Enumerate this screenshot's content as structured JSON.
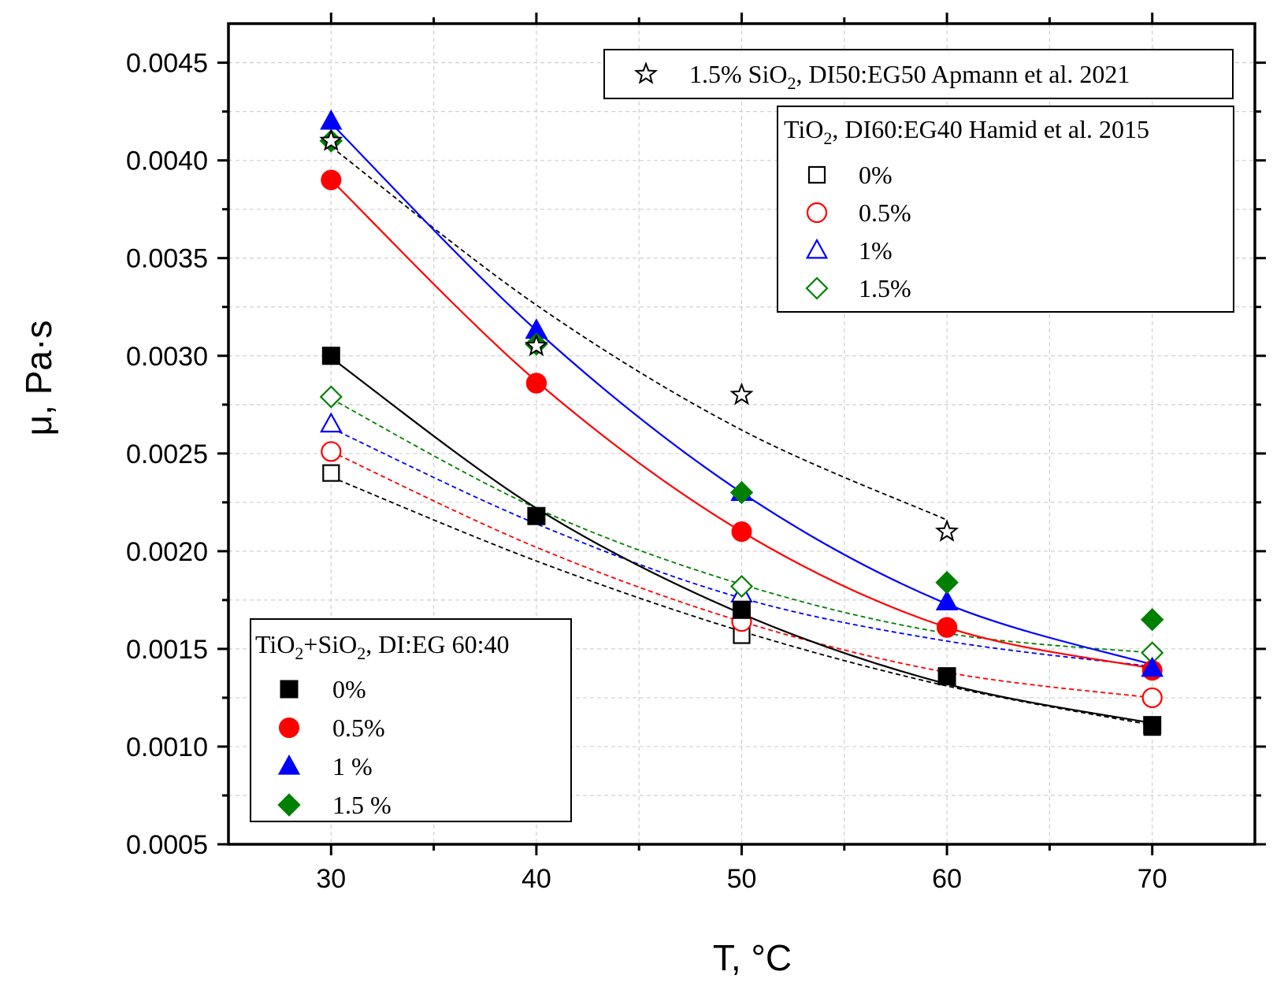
{
  "chart_data": {
    "type": "scatter",
    "xlabel": "T, °C",
    "ylabel": "μ, Pa·s",
    "xlim": [
      25,
      75
    ],
    "ylim": [
      0.0005,
      0.0047
    ],
    "x_ticks": [
      {
        "value": 30,
        "label": "30"
      },
      {
        "value": 40,
        "label": "40"
      },
      {
        "value": 50,
        "label": "50"
      },
      {
        "value": 60,
        "label": "60"
      },
      {
        "value": 70,
        "label": "70"
      }
    ],
    "y_ticks": [
      {
        "value": 0.0005,
        "label": "0.0005"
      },
      {
        "value": 0.001,
        "label": "0.0010"
      },
      {
        "value": 0.0015,
        "label": "0.0015"
      },
      {
        "value": 0.002,
        "label": "0.0020"
      },
      {
        "value": 0.0025,
        "label": "0.0025"
      },
      {
        "value": 0.003,
        "label": "0.0030"
      },
      {
        "value": 0.0035,
        "label": "0.0035"
      },
      {
        "value": 0.004,
        "label": "0.0040"
      },
      {
        "value": 0.0045,
        "label": "0.0045"
      }
    ],
    "grid": true,
    "series": [
      {
        "id": "pres-0",
        "name": "0%",
        "group": "present",
        "marker": "square",
        "filled": true,
        "color": "#000000",
        "fit": "solid",
        "x": [
          30,
          40,
          50,
          60,
          70
        ],
        "y": [
          0.003,
          0.00218,
          0.0017,
          0.00136,
          0.00111
        ],
        "fit_y": [
          0.00299,
          0.00222,
          0.00168,
          0.00132,
          0.00112
        ]
      },
      {
        "id": "pres-05",
        "name": "0.5%",
        "group": "present",
        "marker": "circle",
        "filled": true,
        "color": "#ff0000",
        "fit": "solid",
        "x": [
          30,
          40,
          50,
          60,
          70
        ],
        "y": [
          0.0039,
          0.00286,
          0.0021,
          0.00161,
          0.00139
        ],
        "fit_y": [
          0.0039,
          0.00287,
          0.0021,
          0.00161,
          0.0014
        ]
      },
      {
        "id": "pres-1",
        "name": "1 %",
        "group": "present",
        "marker": "triangle",
        "filled": true,
        "color": "#0000ff",
        "fit": "solid",
        "x": [
          30,
          40,
          50,
          60,
          70
        ],
        "y": [
          0.0042,
          0.00313,
          0.0023,
          0.00174,
          0.0014
        ],
        "fit_y": [
          0.00419,
          0.00313,
          0.0023,
          0.00173,
          0.00142
        ]
      },
      {
        "id": "pres-15",
        "name": "1.5 %",
        "group": "present",
        "marker": "diamond",
        "filled": true,
        "color": "#008000",
        "fit": "none",
        "x": [
          30,
          40,
          50,
          60,
          70
        ],
        "y": [
          0.0041,
          0.00306,
          0.0023,
          0.00184,
          0.00165
        ]
      },
      {
        "id": "ham-0",
        "name": "0%",
        "group": "hamid",
        "marker": "square",
        "filled": false,
        "color": "#000000",
        "fit": "dashed",
        "x": [
          30,
          40,
          50,
          60,
          70
        ],
        "y": [
          0.0024,
          0.00218,
          0.00157,
          0.00136,
          0.0011
        ],
        "fit_y": [
          0.00238,
          0.00195,
          0.00159,
          0.00131,
          0.00111
        ]
      },
      {
        "id": "ham-05",
        "name": "0.5%",
        "group": "hamid",
        "marker": "circle",
        "filled": false,
        "color": "#ff0000",
        "fit": "dashed",
        "x": [
          30,
          40,
          50,
          60,
          70
        ],
        "y": [
          0.00251,
          0.00286,
          0.00164,
          0.00161,
          0.00125
        ],
        "fit_y": [
          0.00251,
          0.00202,
          0.00164,
          0.00138,
          0.00125
        ]
      },
      {
        "id": "ham-1",
        "name": "1%",
        "group": "hamid",
        "marker": "triangle",
        "filled": false,
        "color": "#0000ff",
        "fit": "dashed",
        "x": [
          30,
          40,
          50,
          60,
          70
        ],
        "y": [
          0.00265,
          0.00313,
          0.00178,
          0.00174,
          0.0014
        ],
        "fit_y": [
          0.00263,
          0.00214,
          0.00176,
          0.00154,
          0.00141
        ]
      },
      {
        "id": "ham-15",
        "name": "1.5%",
        "group": "hamid",
        "marker": "diamond",
        "filled": false,
        "color": "#008000",
        "fit": "dashed",
        "x": [
          30,
          40,
          50,
          60,
          70
        ],
        "y": [
          0.00279,
          0.00306,
          0.00182,
          0.00184,
          0.00148
        ],
        "fit_y": [
          0.00278,
          0.00222,
          0.00183,
          0.00158,
          0.00148
        ]
      },
      {
        "id": "apm-15",
        "name": "1.5% SiO2, DI50:EG50 Apmann et al. 2021",
        "group": "apmann",
        "marker": "star",
        "filled": false,
        "color": "#000000",
        "fit": "dashed",
        "x": [
          30,
          40,
          50,
          60
        ],
        "y": [
          0.0041,
          0.00305,
          0.0028,
          0.0021
        ],
        "fit_y": [
          0.00407,
          0.00326,
          0.00262,
          0.00216
        ]
      }
    ],
    "legends": [
      {
        "id": "legend-apmann",
        "title": "",
        "entries": [
          {
            "series": "apm-15",
            "label": "1.5% SiO",
            "sub": "2",
            "tail": ", DI50:EG50 Apmann et al. 2021"
          }
        ]
      },
      {
        "id": "legend-hamid",
        "title": {
          "main": "TiO",
          "sub": "2",
          "tail": ", DI60:EG40 Hamid et al. 2015"
        },
        "entries": [
          {
            "series": "ham-0",
            "label": "0%"
          },
          {
            "series": "ham-05",
            "label": "0.5%"
          },
          {
            "series": "ham-1",
            "label": "1%"
          },
          {
            "series": "ham-15",
            "label": "1.5%"
          }
        ]
      },
      {
        "id": "legend-present",
        "title": {
          "main": "TiO",
          "sub": "2",
          "mid": "+SiO",
          "sub2": "2",
          "tail": ", DI:EG 60:40"
        },
        "entries": [
          {
            "series": "pres-0",
            "label": "0%"
          },
          {
            "series": "pres-05",
            "label": "0.5%"
          },
          {
            "series": "pres-1",
            "label": "1 %"
          },
          {
            "series": "pres-15",
            "label": "1.5 %"
          }
        ]
      }
    ]
  }
}
